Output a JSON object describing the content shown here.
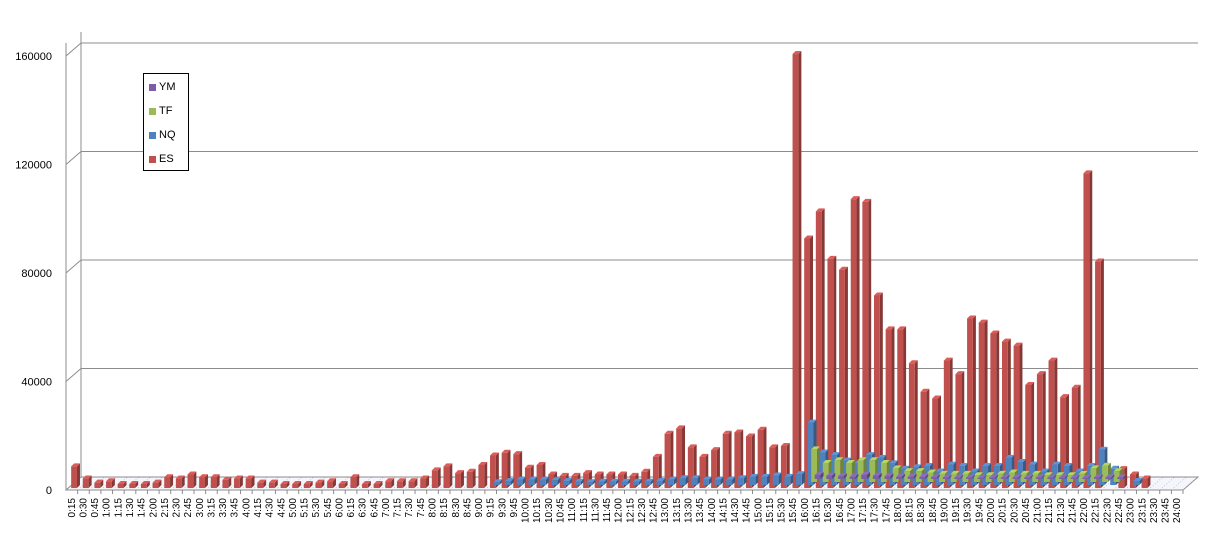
{
  "chart_data": {
    "type": "bar",
    "title": "",
    "xlabel": "",
    "ylabel": "",
    "ylim": [
      0,
      160000
    ],
    "y_ticks": [
      "0",
      "40000",
      "80000",
      "120000",
      "160000"
    ],
    "grid": true,
    "legend_position": "top-left",
    "categories": [
      "0:15",
      "0:30",
      "0:45",
      "1:00",
      "1:15",
      "1:30",
      "1:45",
      "2:00",
      "2:15",
      "2:30",
      "2:45",
      "3:00",
      "3:15",
      "3:30",
      "3:45",
      "4:00",
      "4:15",
      "4:30",
      "4:45",
      "5:00",
      "5:15",
      "5:30",
      "5:45",
      "6:00",
      "6:15",
      "6:30",
      "6:45",
      "7:00",
      "7:15",
      "7:30",
      "7:45",
      "8:00",
      "8:15",
      "8:30",
      "8:45",
      "9:00",
      "9:15",
      "9:30",
      "9:45",
      "10:00",
      "10:15",
      "10:30",
      "10:45",
      "11:00",
      "11:15",
      "11:30",
      "11:45",
      "12:00",
      "12:15",
      "12:30",
      "12:45",
      "13:00",
      "13:15",
      "13:30",
      "13:45",
      "14:00",
      "14:15",
      "14:30",
      "14:45",
      "15:00",
      "15:15",
      "15:30",
      "15:45",
      "16:00",
      "16:15",
      "16:30",
      "16:45",
      "17:00",
      "17:15",
      "17:30",
      "17:45",
      "18:00",
      "18:15",
      "18:30",
      "18:45",
      "19:00",
      "19:15",
      "19:30",
      "19:45",
      "20:00",
      "20:15",
      "20:30",
      "20:45",
      "21:00",
      "21:15",
      "21:30",
      "21:45",
      "22:00",
      "22:15",
      "22:30",
      "22:45",
      "23:00",
      "23:15",
      "23:30",
      "23:45",
      "24:00"
    ],
    "series": [
      {
        "name": "YM",
        "color": "#7b5ea7",
        "values": [
          0,
          0,
          0,
          0,
          0,
          0,
          0,
          0,
          0,
          0,
          0,
          0,
          0,
          0,
          0,
          0,
          0,
          0,
          0,
          0,
          0,
          0,
          0,
          0,
          0,
          0,
          0,
          0,
          0,
          0,
          0,
          0,
          0,
          0,
          0,
          0,
          0,
          0,
          0,
          0,
          0,
          0,
          0,
          0,
          0,
          0,
          0,
          0,
          0,
          0,
          0,
          0,
          0,
          0,
          0,
          0,
          0,
          0,
          0,
          0,
          0,
          0,
          0,
          1500,
          1200,
          1000,
          800,
          1500,
          1200,
          1000,
          800,
          800,
          700,
          600,
          500,
          500,
          500,
          400,
          500,
          500,
          500,
          500,
          500,
          500,
          500,
          400,
          400,
          600,
          600,
          500,
          0,
          0,
          0,
          0,
          0,
          0
        ]
      },
      {
        "name": "TF",
        "color": "#9bbb59",
        "values": [
          0,
          0,
          0,
          0,
          0,
          0,
          0,
          0,
          0,
          0,
          0,
          0,
          0,
          0,
          0,
          0,
          0,
          0,
          0,
          0,
          0,
          0,
          0,
          0,
          0,
          0,
          0,
          0,
          0,
          0,
          0,
          0,
          0,
          0,
          0,
          0,
          0,
          0,
          0,
          0,
          0,
          0,
          0,
          0,
          0,
          0,
          0,
          0,
          0,
          0,
          0,
          0,
          0,
          0,
          0,
          0,
          0,
          0,
          0,
          0,
          0,
          0,
          0,
          12000,
          7000,
          8000,
          7000,
          8000,
          8000,
          7000,
          5000,
          4000,
          4000,
          3500,
          3000,
          3000,
          3000,
          2500,
          2500,
          3000,
          3500,
          3000,
          3000,
          2500,
          2500,
          2500,
          3000,
          5000,
          6000,
          4000,
          0,
          0,
          0,
          0,
          0,
          0
        ]
      },
      {
        "name": "NQ",
        "color": "#4f81bd",
        "values": [
          0,
          0,
          0,
          0,
          0,
          0,
          0,
          0,
          0,
          0,
          0,
          0,
          0,
          0,
          0,
          0,
          0,
          0,
          0,
          0,
          0,
          0,
          0,
          0,
          0,
          0,
          0,
          0,
          0,
          0,
          0,
          0,
          0,
          0,
          0,
          0,
          1000,
          1500,
          2000,
          2000,
          2000,
          1800,
          1500,
          1200,
          1000,
          1200,
          1200,
          1200,
          1200,
          1200,
          1500,
          2000,
          2500,
          2500,
          2000,
          2000,
          2000,
          2500,
          3000,
          3000,
          3500,
          3000,
          4000,
          23000,
          12000,
          11000,
          9000,
          8000,
          11000,
          10000,
          8000,
          6000,
          6500,
          7000,
          5000,
          7500,
          7000,
          5000,
          7000,
          7000,
          10000,
          8500,
          7500,
          5000,
          7500,
          7000,
          5000,
          7000,
          13000,
          6000,
          0,
          1500,
          0,
          0,
          0,
          0
        ]
      },
      {
        "name": "ES",
        "color": "#c0504d",
        "values": [
          8000,
          3500,
          2000,
          2500,
          1500,
          1500,
          1500,
          2000,
          4000,
          3500,
          5000,
          4000,
          4000,
          3000,
          3500,
          3500,
          2000,
          2000,
          1500,
          1500,
          1500,
          2000,
          2500,
          1500,
          4000,
          1500,
          1500,
          2500,
          2500,
          2500,
          3500,
          6500,
          8000,
          5500,
          6000,
          8500,
          12000,
          13000,
          12500,
          7500,
          8500,
          5000,
          4500,
          4500,
          5500,
          5000,
          5000,
          5000,
          4500,
          6000,
          11500,
          20000,
          22000,
          15000,
          11500,
          14000,
          20000,
          20500,
          19000,
          21500,
          15000,
          15500,
          160000,
          92000,
          102000,
          84500,
          80500,
          106500,
          105500,
          71000,
          58500,
          58500,
          46000,
          35500,
          33000,
          47000,
          42000,
          62500,
          61000,
          57000,
          54000,
          52500,
          38000,
          42000,
          47000,
          33500,
          37000,
          116000,
          83500,
          0,
          7000,
          5000,
          3500,
          0,
          0,
          0
        ]
      }
    ]
  }
}
